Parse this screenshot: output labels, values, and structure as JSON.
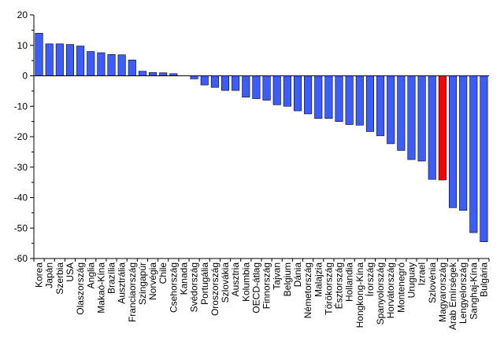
{
  "chart_data": {
    "type": "bar",
    "title": "",
    "xlabel": "",
    "ylabel": "",
    "ylim": [
      -60,
      20
    ],
    "yticks": [
      20,
      10,
      0,
      -10,
      -20,
      -30,
      -40,
      -50,
      -60
    ],
    "bar_color": "#3b5cff",
    "highlight_color": "#ff0000",
    "highlight_category": "Magyarország",
    "grid": false,
    "categories": [
      "Korea",
      "Japán",
      "Szerbia",
      "USA",
      "Olaszország",
      "Anglia",
      "Makaó-Kína",
      "Brazília",
      "Ausztrália",
      "Franciaország",
      "Szingapúr",
      "Norvégia",
      "Chile",
      "Csehország",
      "Kanada",
      "Svédország",
      "Portugália",
      "Oroszország",
      "Szlovákia",
      "Ausztria",
      "Kolumbia",
      "OECD-átlag",
      "Finnország",
      "Tajvan",
      "Belgium",
      "Dánia",
      "Németország",
      "Malajzia",
      "Törökország",
      "Észtország",
      "Hollandia",
      "Hongkong-Kína",
      "Írország",
      "Spanyolország",
      "Horvátország",
      "Montenegró",
      "Uruguay",
      "Izrael",
      "Szlovénia",
      "Magyarország",
      "Arab Emírségek",
      "Lengyelország",
      "Sanghaj-Kína",
      "Bulgária"
    ],
    "values": [
      14,
      10.5,
      10.5,
      10.3,
      9.8,
      8,
      7.6,
      7,
      6.9,
      5.2,
      1.5,
      1.1,
      1,
      0.7,
      0,
      -1,
      -3,
      -3.8,
      -4.8,
      -4.8,
      -7,
      -7.5,
      -8,
      -9.5,
      -10,
      -11.5,
      -12.5,
      -14,
      -14,
      -15,
      -16,
      -16.2,
      -18.3,
      -19.7,
      -22.3,
      -24.5,
      -27.5,
      -28,
      -34,
      -34.2,
      -43.3,
      -44.2,
      -51.5,
      -54.5
    ]
  }
}
